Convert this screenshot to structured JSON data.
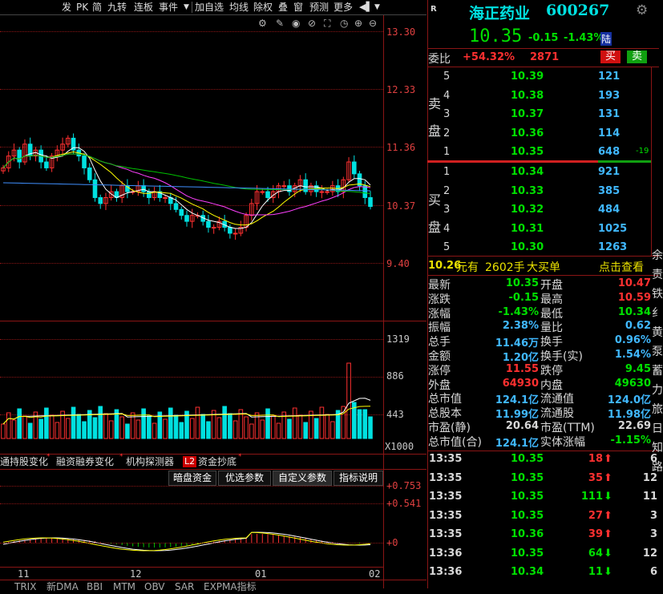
{
  "toolbar": {
    "items": [
      "发",
      "PK",
      "简",
      "九转",
      "连板",
      "事件",
      "▼",
      "加自选",
      "均线",
      "除权",
      "叠",
      "窗",
      "预测",
      "更多",
      "◀▌",
      "▼"
    ]
  },
  "chart": {
    "price_ticks": [
      "13.30",
      "12.33",
      "11.36",
      "10.37",
      "9.40"
    ],
    "volume_ticks": [
      "1319",
      "886",
      "443"
    ],
    "volume_unit": "X1000",
    "indicator_ticks": [
      "+0.753",
      "+0.541",
      "+0"
    ],
    "date_labels": [
      "11",
      "12",
      "01",
      "02"
    ],
    "tabs": [
      "通持股变化",
      "融资融券变化",
      "机构探测器",
      "资金抄底"
    ],
    "l2_badge": "L2",
    "sub_buttons": [
      "暗盘资金",
      "优选参数",
      "自定义参数",
      "指标说明"
    ],
    "bottom_tabs": [
      "TRIX",
      "新DMA",
      "BBI",
      "MTM",
      "OBV",
      "SAR",
      "EXPMA指标"
    ]
  },
  "chart_data": {
    "type": "candlestick",
    "ylim": [
      9.0,
      13.6
    ],
    "closes": [
      11.0,
      11.2,
      11.3,
      11.1,
      11.4,
      11.2,
      11.3,
      11.1,
      11.0,
      11.2,
      11.3,
      11.4,
      11.5,
      11.3,
      11.2,
      11.0,
      10.8,
      10.5,
      10.4,
      10.5,
      10.6,
      10.5,
      10.7,
      10.6,
      10.6,
      10.7,
      10.6,
      10.5,
      10.6,
      10.5,
      10.5,
      10.4,
      10.3,
      10.2,
      10.1,
      10.2,
      10.2,
      10.1,
      10.0,
      10.0,
      10.1,
      10.0,
      9.9,
      9.9,
      10.0,
      10.2,
      10.4,
      10.6,
      10.6,
      10.5,
      10.6,
      10.7,
      10.7,
      10.6,
      10.7,
      10.8,
      10.6,
      10.7,
      10.6,
      10.6,
      10.6,
      10.7,
      10.6,
      10.8,
      11.1,
      10.9,
      10.7,
      10.5,
      10.35
    ]
  },
  "panel": {
    "header_mark": "R",
    "stock_name": "海正药业",
    "stock_code": "600267",
    "price": "10.35",
    "change": "-0.15",
    "change_pct": "-1.43%",
    "market_tag": "陆",
    "weibi_label": "委比",
    "weibi_value": "+54.32%",
    "weicha_value": "2871",
    "buy_btn": "买",
    "sell_btn": "卖",
    "sell_label": [
      "卖",
      "盘"
    ],
    "buy_label": [
      "买",
      "盘"
    ],
    "asks": [
      {
        "level": "5",
        "price": "10.39",
        "vol": "121",
        "extra": ""
      },
      {
        "level": "4",
        "price": "10.38",
        "vol": "193",
        "extra": ""
      },
      {
        "level": "3",
        "price": "10.37",
        "vol": "131",
        "extra": ""
      },
      {
        "level": "2",
        "price": "10.36",
        "vol": "114",
        "extra": ""
      },
      {
        "level": "1",
        "price": "10.35",
        "vol": "648",
        "extra": "-19"
      }
    ],
    "bids": [
      {
        "level": "1",
        "price": "10.34",
        "vol": "921"
      },
      {
        "level": "2",
        "price": "10.33",
        "vol": "385"
      },
      {
        "level": "3",
        "price": "10.32",
        "vol": "484"
      },
      {
        "level": "4",
        "price": "10.31",
        "vol": "1025"
      },
      {
        "level": "5",
        "price": "10.30",
        "vol": "1263"
      }
    ],
    "big_price": "10.26",
    "big_unit": "元有",
    "big_vol": "2602手",
    "big_type": "大买单",
    "big_link": "点击查看",
    "stats": [
      {
        "l1": "最新",
        "v1": "10.35",
        "l2": "开盘",
        "v2": "10.47"
      },
      {
        "l1": "涨跌",
        "v1": "-0.15",
        "l2": "最高",
        "v2": "10.59"
      },
      {
        "l1": "涨幅",
        "v1": "-1.43%",
        "l2": "最低",
        "v2": "10.34"
      },
      {
        "l1": "振幅",
        "v1": "2.38%",
        "l2": "量比",
        "v2": "0.62"
      },
      {
        "l1": "总手",
        "v1": "11.46万",
        "l2": "换手",
        "v2": "0.96%"
      },
      {
        "l1": "金额",
        "v1": "1.20亿",
        "l2": "换手(实)",
        "v2": "1.54%"
      },
      {
        "l1": "涨停",
        "v1": "11.55",
        "l2": "跌停",
        "v2": "9.45"
      },
      {
        "l1": "外盘",
        "v1": "64930",
        "l2": "内盘",
        "v2": "49630"
      },
      {
        "l1": "总市值",
        "v1": "124.1亿",
        "l2": "流通值",
        "v2": "124.0亿"
      },
      {
        "l1": "总股本",
        "v1": "11.99亿",
        "l2": "流通股",
        "v2": "11.98亿"
      },
      {
        "l1": "市盈(静)",
        "v1": "20.64",
        "l2": "市盈(TTM)",
        "v2": "22.69"
      },
      {
        "l1": "总市值(合)",
        "v1": "124.1亿",
        "l2": "实体涨幅",
        "v2": "-1.15%"
      }
    ],
    "ticks": [
      {
        "time": "13:35",
        "price": "10.35",
        "vol": "18",
        "dir": "up",
        "n": "6"
      },
      {
        "time": "13:35",
        "price": "10.35",
        "vol": "35",
        "dir": "up",
        "n": "12"
      },
      {
        "time": "13:35",
        "price": "10.35",
        "vol": "111",
        "dir": "down",
        "n": "11"
      },
      {
        "time": "13:35",
        "price": "10.35",
        "vol": "27",
        "dir": "up",
        "n": "3"
      },
      {
        "time": "13:35",
        "price": "10.36",
        "vol": "39",
        "dir": "up",
        "n": "3"
      },
      {
        "time": "13:36",
        "price": "10.35",
        "vol": "64",
        "dir": "down",
        "n": "12"
      },
      {
        "time": "13:36",
        "price": "10.34",
        "vol": "11",
        "dir": "down",
        "n": "6"
      }
    ],
    "side_chars": [
      "余",
      "责",
      "铁",
      "纟",
      "黄",
      "泵",
      "蓄",
      "力",
      "旅",
      "日",
      "知",
      "路"
    ]
  },
  "colors": {
    "up": "#ff3030",
    "down": "#00e0e0",
    "green": "#00e000",
    "grid": "#8a1515"
  }
}
